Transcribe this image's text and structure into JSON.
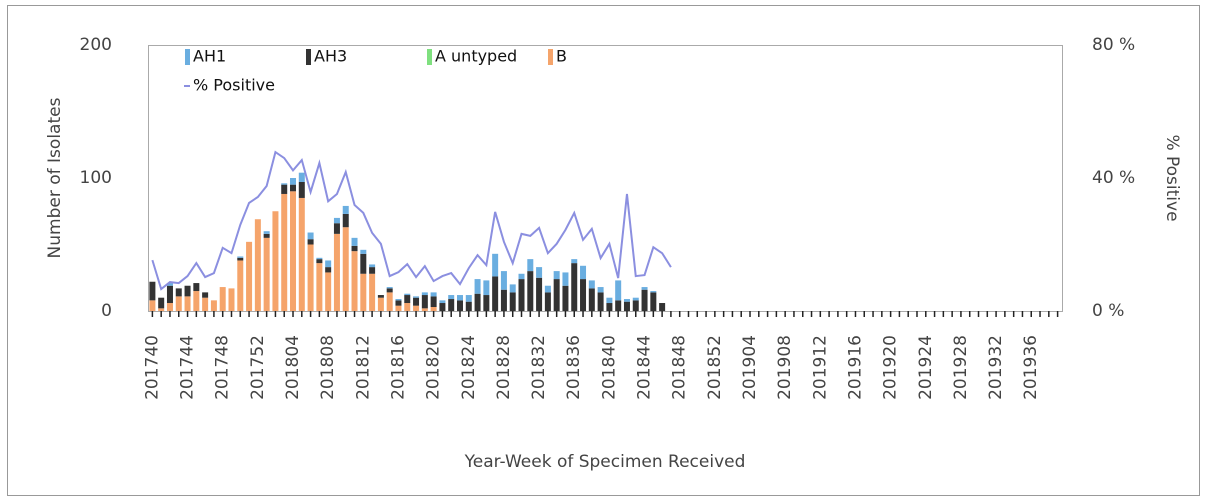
{
  "chart_data": {
    "type": "bar-line",
    "x_label": "Year-Week of Specimen Received",
    "y_label": "Number of Isolates",
    "y2_label": "% Positive",
    "ylim": [
      0,
      200
    ],
    "yticks": [
      0,
      100,
      200
    ],
    "y2lim": [
      0,
      80
    ],
    "y2ticks": [
      {
        "value": 0,
        "label": "0 %"
      },
      {
        "value": 40,
        "label": "40 %"
      },
      {
        "value": 80,
        "label": "80 %"
      }
    ],
    "legend": "top-left",
    "categories": [
      "201740",
      null,
      null,
      null,
      "201744",
      null,
      null,
      null,
      "201748",
      null,
      null,
      null,
      "201752",
      null,
      null,
      null,
      "201804",
      null,
      null,
      null,
      "201808",
      null,
      null,
      null,
      "201812",
      null,
      null,
      null,
      "201816",
      null,
      null,
      null,
      "201820",
      null,
      null,
      null,
      "201824",
      null,
      null,
      null,
      "201828",
      null,
      null,
      null,
      "201832",
      null,
      null,
      null,
      "201836",
      null,
      null,
      null,
      "201840",
      null,
      null,
      null,
      "201844",
      null,
      null,
      null,
      "201848",
      null,
      null,
      null,
      "201852",
      null,
      null,
      null,
      "201904",
      null,
      null,
      null,
      "201908",
      null,
      null,
      null,
      "201912",
      null,
      null,
      null,
      "201916",
      null,
      null,
      null,
      "201920",
      null,
      null,
      null,
      "201924",
      null,
      null,
      null,
      "201928",
      null,
      null,
      null,
      "201932",
      null,
      null,
      null,
      "201936",
      null,
      null,
      null
    ],
    "series": [
      {
        "name": "AH1",
        "type": "bar",
        "color": "#6aaee0",
        "values": [
          0,
          0,
          2,
          0,
          0,
          0,
          0,
          0,
          0,
          0,
          1,
          0,
          0,
          2,
          0,
          1,
          5,
          7,
          5,
          1,
          5,
          4,
          6,
          6,
          3,
          2,
          0,
          1,
          1,
          1,
          1,
          2,
          3,
          2,
          3,
          4,
          5,
          11,
          11,
          17,
          14,
          6,
          4,
          9,
          8,
          5,
          6,
          10,
          3,
          10,
          6,
          4,
          4,
          15,
          2,
          2,
          2,
          1,
          0,
          null,
          null,
          null,
          null,
          null,
          null,
          null,
          null,
          null,
          null,
          null,
          null,
          null,
          null,
          null,
          null,
          null,
          null,
          null,
          null,
          null,
          null,
          null,
          null,
          null,
          null,
          null,
          null,
          null,
          null,
          null,
          null,
          null,
          null,
          null,
          null,
          null,
          null,
          null,
          null,
          null,
          null,
          null,
          null,
          null
        ]
      },
      {
        "name": "AH3",
        "type": "bar",
        "color": "#333333",
        "values": [
          14,
          8,
          13,
          6,
          8,
          6,
          4,
          0,
          0,
          0,
          2,
          0,
          0,
          3,
          0,
          7,
          5,
          12,
          4,
          3,
          4,
          8,
          10,
          4,
          15,
          5,
          2,
          3,
          4,
          6,
          6,
          10,
          8,
          6,
          9,
          8,
          7,
          13,
          12,
          26,
          16,
          14,
          24,
          30,
          25,
          14,
          24,
          19,
          36,
          24,
          17,
          14,
          6,
          8,
          7,
          8,
          16,
          14,
          6,
          null,
          null,
          null,
          null,
          null,
          null,
          null,
          null,
          null,
          null,
          null,
          null,
          null,
          null,
          null,
          null,
          null,
          null,
          null,
          null,
          null,
          null,
          null,
          null,
          null,
          null,
          null,
          null,
          null,
          null,
          null,
          null,
          null,
          null,
          null,
          null,
          null,
          null,
          null,
          null,
          null,
          null,
          null,
          null,
          null
        ]
      },
      {
        "name": "A untyped",
        "type": "bar",
        "color": "#7fe07f",
        "values": [
          0,
          0,
          0,
          0,
          0,
          0,
          0,
          0,
          0,
          0,
          0,
          0,
          0,
          0,
          0,
          0,
          0,
          0,
          0,
          0,
          0,
          0,
          0,
          0,
          0,
          0,
          0,
          0,
          0,
          0,
          0,
          0,
          0,
          0,
          0,
          0,
          0,
          0,
          0,
          0,
          0,
          0,
          0,
          0,
          0,
          0,
          0,
          0,
          0,
          0,
          0,
          0,
          0,
          0,
          0,
          0,
          0,
          0,
          0,
          null,
          null,
          null,
          null,
          null,
          null,
          null,
          null,
          null,
          null,
          null,
          null,
          null,
          null,
          null,
          null,
          null,
          null,
          null,
          null,
          null,
          null,
          null,
          null,
          null,
          null,
          null,
          null,
          null,
          null,
          null,
          null,
          null,
          null,
          null,
          null,
          null,
          null,
          null,
          null,
          null,
          null,
          null,
          null,
          null
        ]
      },
      {
        "name": "B",
        "type": "bar",
        "color": "#f5a46b",
        "values": [
          8,
          2,
          6,
          11,
          11,
          15,
          10,
          8,
          18,
          17,
          38,
          52,
          69,
          55,
          75,
          88,
          90,
          85,
          50,
          36,
          29,
          58,
          63,
          45,
          28,
          28,
          10,
          14,
          4,
          6,
          4,
          2,
          3,
          0,
          0,
          0,
          0,
          0,
          0,
          0,
          0,
          0,
          0,
          0,
          0,
          0,
          0,
          0,
          0,
          0,
          0,
          0,
          0,
          0,
          0,
          0,
          0,
          0,
          0,
          null,
          null,
          null,
          null,
          null,
          null,
          null,
          null,
          null,
          null,
          null,
          null,
          null,
          null,
          null,
          null,
          null,
          null,
          null,
          null,
          null,
          null,
          null,
          null,
          null,
          null,
          null,
          null,
          null,
          null,
          null,
          null,
          null,
          null,
          null,
          null,
          null,
          null,
          null,
          null,
          null,
          null,
          null,
          null,
          null
        ]
      },
      {
        "name": "% Positive",
        "type": "line",
        "axis": "y2",
        "color": "#8b8fe0",
        "values": [
          15.3,
          6.6,
          8.7,
          8.4,
          10.5,
          14.4,
          10.2,
          11.4,
          19,
          17.4,
          25.9,
          32.5,
          34.3,
          37.6,
          47.8,
          46,
          42.3,
          45.4,
          35.8,
          44.5,
          33,
          35.2,
          41.8,
          31.9,
          29.5,
          23.5,
          20.2,
          10.5,
          11.7,
          14.1,
          10.2,
          13.5,
          9,
          10.5,
          11.4,
          8.1,
          12.9,
          16.8,
          13.8,
          29.8,
          20.8,
          14.4,
          23.2,
          22.6,
          25,
          17.4,
          20.2,
          24.4,
          29.5,
          21.4,
          24.7,
          15.9,
          20.2,
          9.9,
          35.2,
          10.5,
          10.8,
          19.2,
          17.4,
          13.2,
          null,
          null,
          null,
          null,
          null,
          null,
          null,
          null,
          null,
          null,
          null,
          null,
          null,
          null,
          null,
          null,
          null,
          null,
          null,
          null,
          null,
          null,
          null,
          null,
          null,
          null,
          null,
          null,
          null,
          null,
          null,
          null,
          null,
          null,
          null,
          null,
          null,
          null,
          null,
          null,
          null,
          null,
          null,
          null
        ]
      }
    ]
  }
}
